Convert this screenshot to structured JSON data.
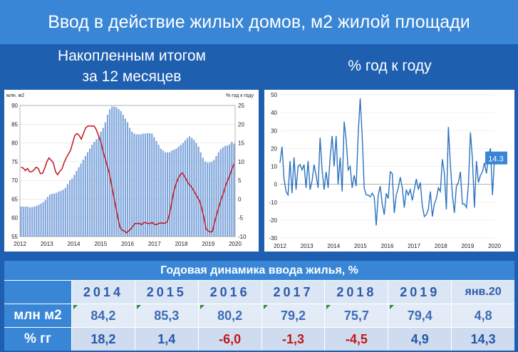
{
  "title": "Ввод в действие жилых домов, м2 жилой площади",
  "subtitles": {
    "left_line1": "Накопленным итогом",
    "left_line2": "за 12 месяцев",
    "right": "% год к году"
  },
  "chart_data": [
    {
      "type": "bar",
      "ylabel_left": "млн. м2",
      "ylabel_right": "% год к году",
      "ylim_left": [
        55,
        90
      ],
      "ylim_right": [
        -10,
        25
      ],
      "yticks_left": [
        "55",
        "60",
        "65",
        "70",
        "75",
        "80",
        "85",
        "90"
      ],
      "yticks_right": [
        "-10",
        "-5",
        "0",
        "5",
        "10",
        "15",
        "20",
        "25"
      ],
      "xticks": [
        "2012",
        "2013",
        "2014",
        "2015",
        "2016",
        "2017",
        "2018",
        "2019",
        "2020"
      ],
      "grid": true,
      "series": [
        {
          "kind": "bar",
          "color": "#7fa6dc",
          "values": [
            63,
            63,
            63,
            63,
            62.8,
            62.9,
            63,
            63.2,
            63.5,
            63.8,
            64.2,
            64.8,
            65.6,
            66.2,
            66.4,
            66.5,
            66.7,
            67,
            67.2,
            67.5,
            68,
            69,
            70,
            70.5,
            71.5,
            72.5,
            73.5,
            74.5,
            75.5,
            76.5,
            77.5,
            78.5,
            79.5,
            80.3,
            81,
            81.5,
            83,
            84,
            85.5,
            87.5,
            89,
            89.7,
            89.7,
            89.5,
            89,
            88.5,
            87.5,
            86.5,
            85.5,
            84,
            83,
            82.5,
            82.3,
            82.3,
            82.3,
            82.5,
            82.5,
            82.6,
            82.6,
            82.5,
            81.5,
            80.5,
            79.5,
            78.5,
            78,
            77.5,
            77.5,
            77.5,
            78,
            78.2,
            78.5,
            79,
            79.5,
            80,
            80.7,
            81.3,
            81.8,
            81.3,
            80.8,
            80,
            79,
            77.5,
            76,
            75,
            74.8,
            74.8,
            75,
            75.5,
            76.5,
            77.5,
            78.3,
            78.8,
            79.2,
            79.3,
            79.6,
            80.3,
            79.8
          ]
        },
        {
          "kind": "line",
          "color": "#c0161e",
          "axis": "right",
          "values": [
            8.5,
            8.3,
            7.6,
            8.2,
            7.3,
            7.3,
            7.8,
            8.5,
            8.2,
            6.8,
            6.9,
            8.2,
            10,
            11,
            10.4,
            9.7,
            7.4,
            6.5,
            7.4,
            8,
            9.7,
            11,
            12,
            13,
            15,
            17,
            17.5,
            17,
            16,
            17.5,
            19,
            19.5,
            19.5,
            19.5,
            19.5,
            18.5,
            17,
            15.5,
            13,
            11,
            9,
            7,
            4,
            1,
            -2,
            -5,
            -7.5,
            -8.3,
            -8.5,
            -9,
            -8.5,
            -8,
            -7.2,
            -6.5,
            -6.5,
            -6.5,
            -6.8,
            -6.3,
            -6.3,
            -6.5,
            -6.5,
            -6.2,
            -6.8,
            -6.8,
            -6.5,
            -6.3,
            -6.5,
            -6.4,
            -6,
            -4,
            -1,
            2,
            4,
            5.5,
            6.5,
            7,
            6,
            5,
            4,
            3.4,
            2.5,
            1.5,
            0.5,
            -0.5,
            -2.5,
            -5,
            -8,
            -8.5,
            -8.8,
            -8.6,
            -6,
            -4,
            -2,
            0,
            1.5,
            3.5,
            5,
            6.3,
            8,
            9.5
          ]
        }
      ]
    },
    {
      "type": "line",
      "ylim": [
        -30,
        50
      ],
      "yticks": [
        "-30",
        "-20",
        "-10",
        "0",
        "10",
        "20",
        "30",
        "40",
        "50"
      ],
      "xticks": [
        "2012",
        "2013",
        "2014",
        "2015",
        "2016",
        "2017",
        "2018",
        "2019",
        "2020"
      ],
      "grid": true,
      "series": [
        {
          "color": "#2c73bf",
          "values": [
            12,
            21,
            3,
            -4,
            -6,
            13,
            -5,
            15,
            -3,
            10,
            11,
            8,
            11,
            -2,
            13,
            -3,
            2,
            11,
            5,
            -2,
            26,
            8,
            -3,
            7,
            -2,
            15,
            27,
            10,
            27,
            0,
            15,
            -4,
            35,
            25,
            8,
            10,
            -2,
            5,
            -1,
            28,
            48,
            27,
            -2,
            -6,
            -6,
            -7,
            -5,
            -7,
            -23,
            -6,
            -1,
            -11,
            -17,
            -5,
            -8,
            7,
            6,
            -16,
            -6,
            -2,
            4,
            -2,
            -13,
            -3,
            -6,
            -3,
            -9,
            -3,
            3,
            -3,
            1,
            -12,
            -18,
            -17,
            -14,
            -4,
            -18,
            -11,
            -8,
            -2,
            -4,
            14,
            6,
            -14,
            32,
            11,
            -6,
            -16,
            -1,
            1,
            7,
            -11,
            -11,
            -13,
            0,
            29,
            14,
            -13,
            13,
            1,
            5,
            7,
            12,
            6,
            16,
            20,
            -6,
            14.3
          ],
          "end_label": "14.3"
        }
      ]
    }
  ],
  "table": {
    "heading": "Годовая динамика ввода жилья, %",
    "years": [
      "2014",
      "2015",
      "2016",
      "2017",
      "2018",
      "2019",
      "янв.20"
    ],
    "mln_label": "млн м2",
    "mln": [
      "84,2",
      "85,3",
      "80,2",
      "79,2",
      "75,7",
      "79,4",
      "4,8"
    ],
    "pct_label": "% гг",
    "pct": [
      "18,2",
      "1,4",
      "-6,0",
      "-1,3",
      "-4,5",
      "4,9",
      "14,3"
    ]
  }
}
